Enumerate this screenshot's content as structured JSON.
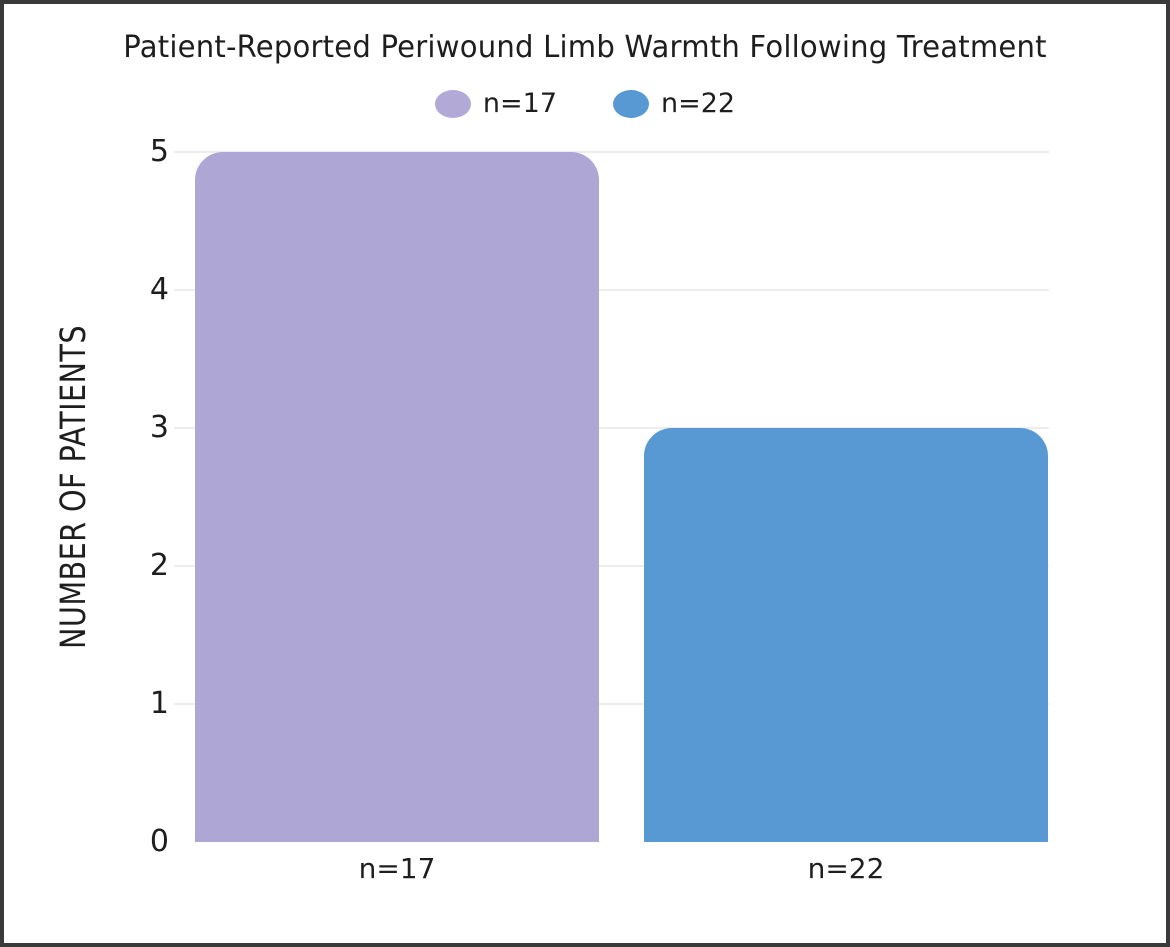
{
  "window": {
    "background": "#ffffff",
    "frame_border_color": "#3a3a3a"
  },
  "chart_data": {
    "type": "bar",
    "title": "Patient-Reported Periwound Limb Warmth Following Treatment",
    "xlabel": "",
    "ylabel": "NUMBER OF PATIENTS",
    "categories": [
      "n=17",
      "n=22"
    ],
    "values": [
      5,
      3
    ],
    "bar_colors": [
      "#aea6d4",
      "#5899d4"
    ],
    "ylim": [
      0,
      5
    ],
    "yticks": [
      0,
      1,
      2,
      3,
      4,
      5
    ],
    "grid": "horizontal-light",
    "gridline_color": "#ededed",
    "legend_position": "top-center",
    "legend": [
      {
        "label": "n=17",
        "color": "#b2a9d7"
      },
      {
        "label": "n=22",
        "color": "#5899d4"
      }
    ],
    "text_color": "#1e1e1e"
  }
}
